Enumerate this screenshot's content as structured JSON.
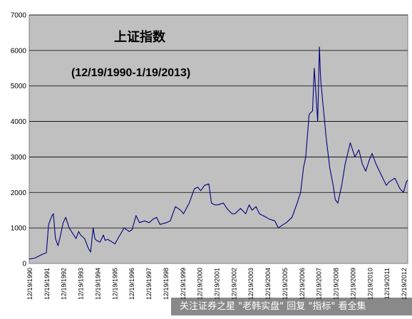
{
  "chart_data": {
    "type": "line",
    "title": "上证指数",
    "subtitle": "(12/19/1990-1/19/2013)",
    "ylim": [
      0,
      7000
    ],
    "y_ticks": [
      0,
      1000,
      2000,
      3000,
      4000,
      5000,
      6000,
      7000
    ],
    "x_tick_labels": [
      "12/19/1990",
      "12/19/1991",
      "12/19/1992",
      "12/19/1993",
      "12/19/1994",
      "12/19/1995",
      "12/19/1996",
      "12/19/1997",
      "12/19/1998",
      "12/19/1999",
      "12/19/2000",
      "12/19/2001",
      "12/19/2002",
      "12/19/2003",
      "12/19/2004",
      "12/19/2005",
      "12/19/2006",
      "12/19/2007",
      "12/19/2008",
      "12/19/2009",
      "12/19/2010",
      "12/19/2011",
      "12/19/2012"
    ],
    "grid": true,
    "line_color": "#000080",
    "plot_background": "#c0c0c0",
    "series": [
      {
        "x": [
          1990.97,
          1991.3,
          1991.7,
          1991.97,
          1992.1,
          1992.3,
          1992.38,
          1992.5,
          1992.65,
          1992.8,
          1992.95,
          1993.1,
          1993.3,
          1993.5,
          1993.7,
          1993.85,
          1993.97,
          1994.2,
          1994.4,
          1994.55,
          1994.7,
          1994.8,
          1994.9,
          1995.1,
          1995.3,
          1995.4,
          1995.55,
          1995.75,
          1995.97,
          1996.2,
          1996.5,
          1996.8,
          1996.97,
          1997.2,
          1997.4,
          1997.7,
          1997.97,
          1998.2,
          1998.4,
          1998.6,
          1998.97,
          1999.2,
          1999.5,
          1999.8,
          1999.97,
          2000.3,
          2000.6,
          2000.8,
          2000.97,
          2001.2,
          2001.45,
          2001.6,
          2001.8,
          2001.97,
          2002.3,
          2002.5,
          2002.8,
          2002.97,
          2003.3,
          2003.6,
          2003.8,
          2003.97,
          2004.2,
          2004.4,
          2004.6,
          2004.8,
          2004.97,
          2005.3,
          2005.5,
          2005.8,
          2005.97,
          2006.3,
          2006.6,
          2006.8,
          2006.97,
          2007.1,
          2007.3,
          2007.5,
          2007.6,
          2007.8,
          2007.9,
          2007.97,
          2008.1,
          2008.3,
          2008.5,
          2008.7,
          2008.82,
          2008.97,
          2009.2,
          2009.4,
          2009.6,
          2009.7,
          2009.97,
          2010.2,
          2010.4,
          2010.6,
          2010.8,
          2010.97,
          2011.2,
          2011.4,
          2011.6,
          2011.8,
          2011.97,
          2012.3,
          2012.6,
          2012.8,
          2012.97,
          2013.05
        ],
        "y": [
          127,
          150,
          250,
          300,
          1100,
          1350,
          1400,
          700,
          500,
          800,
          1150,
          1300,
          1000,
          850,
          700,
          900,
          800,
          700,
          450,
          320,
          1000,
          700,
          650,
          600,
          800,
          650,
          680,
          620,
          550,
          750,
          1000,
          900,
          950,
          1350,
          1150,
          1200,
          1150,
          1250,
          1300,
          1100,
          1150,
          1200,
          1600,
          1500,
          1400,
          1700,
          2100,
          2150,
          2050,
          2200,
          2240,
          1700,
          1650,
          1650,
          1700,
          1550,
          1400,
          1400,
          1550,
          1400,
          1650,
          1500,
          1600,
          1400,
          1350,
          1300,
          1250,
          1200,
          1000,
          1100,
          1150,
          1300,
          1700,
          2000,
          2700,
          3000,
          4200,
          4300,
          5500,
          4000,
          6100,
          5200,
          4500,
          3500,
          2700,
          2200,
          1800,
          1700,
          2200,
          2800,
          3200,
          3400,
          3000,
          3200,
          2800,
          2600,
          2900,
          3100,
          2800,
          2600,
          2400,
          2200,
          2300,
          2400,
          2100,
          2000,
          2300,
          2350
        ]
      }
    ]
  },
  "watermark": {
    "text": "关注证券之星 \"老韩实盘\" 回复 \"指标\" 看全集"
  }
}
